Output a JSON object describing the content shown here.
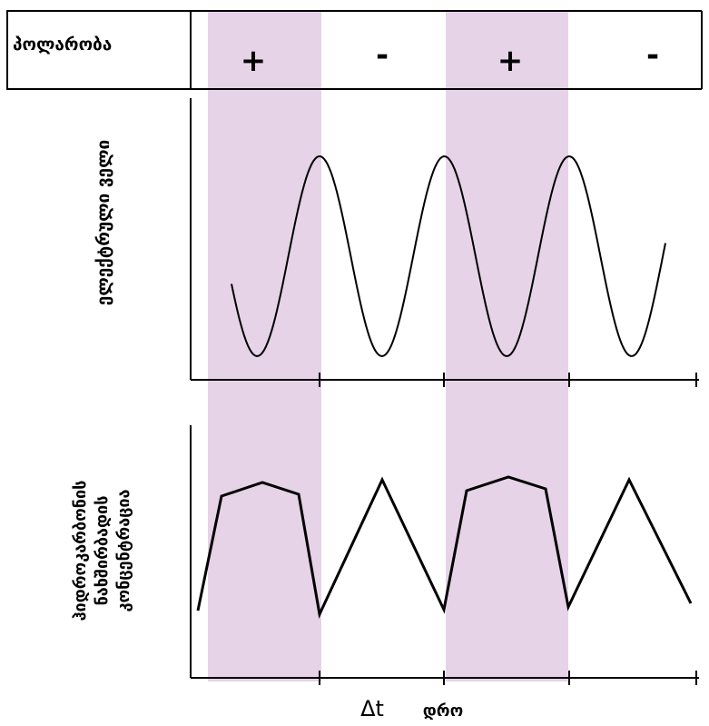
{
  "colors": {
    "band_fill": "#e6d3e8",
    "line": "#000000",
    "background": "#ffffff"
  },
  "header": {
    "label": "პოლარობა",
    "signs": [
      "+",
      "-",
      "+",
      "-"
    ]
  },
  "top_panel": {
    "ylabel": "ელექტრული ველი"
  },
  "bottom_panel": {
    "ylabel_lines": [
      "ჰიდროკარბონის",
      "ნახშირბადის",
      "კონცენტრაცია"
    ]
  },
  "axis": {
    "interval_label": "Δt",
    "time_label": "დრო"
  }
}
